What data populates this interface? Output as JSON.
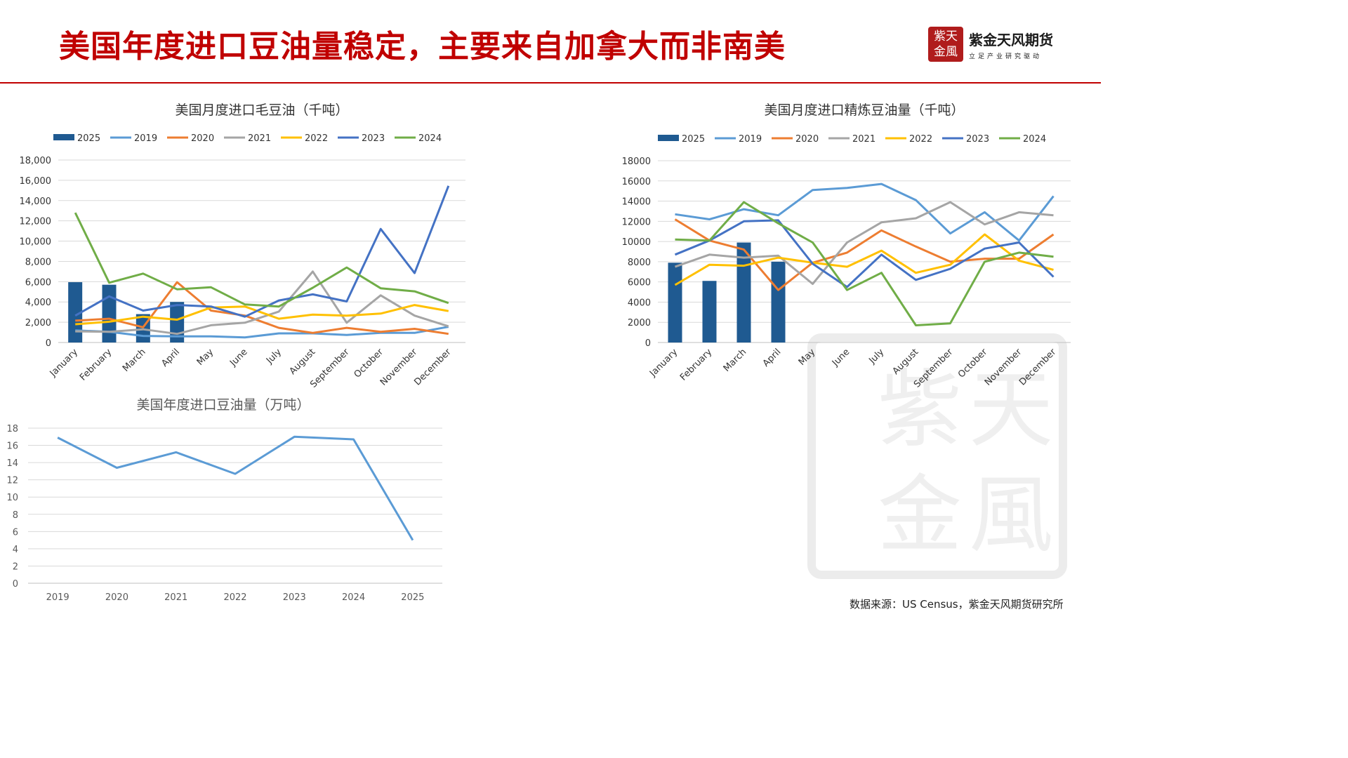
{
  "title": "美国年度进口豆油量稳定，主要来自加拿大而非南美",
  "logo": {
    "seal_text": "紫天金風",
    "name": "紫金天风期货",
    "slogan": "立足产业研究驱动"
  },
  "source": "数据来源：US Census，紫金天风期货研究所",
  "colors": {
    "title_red": "#c00000",
    "2025": "#1f5a91",
    "2019": "#5b9bd5",
    "2020": "#ed7d31",
    "2021": "#a5a5a5",
    "2022": "#ffc000",
    "2023": "#4472c4",
    "2024": "#70ad47"
  },
  "chart_data": [
    {
      "id": "crude",
      "type": "bar+line",
      "title": "美国月度进口毛豆油（千吨）",
      "categories": [
        "January",
        "February",
        "March",
        "April",
        "May",
        "June",
        "July",
        "August",
        "September",
        "October",
        "November",
        "December"
      ],
      "ylim": [
        0,
        18000
      ],
      "yticks": [
        "0",
        "2,000",
        "4,000",
        "6,000",
        "8,000",
        "10,000",
        "12,000",
        "14,000",
        "16,000",
        "18,000"
      ],
      "grid": true,
      "legend": "top",
      "bar_series": {
        "name": "2025",
        "values": [
          5950,
          5700,
          2800,
          4000
        ]
      },
      "series": [
        {
          "name": "2019",
          "values": [
            1200,
            1050,
            650,
            600,
            600,
            500,
            900,
            900,
            750,
            950,
            950,
            1550
          ]
        },
        {
          "name": "2020",
          "values": [
            2150,
            2350,
            1500,
            5950,
            3150,
            2650,
            1450,
            950,
            1450,
            1050,
            1350,
            850
          ]
        },
        {
          "name": "2021",
          "values": [
            1100,
            1050,
            1300,
            850,
            1700,
            1950,
            3050,
            7000,
            1950,
            4650,
            2650,
            1600
          ]
        },
        {
          "name": "2022",
          "values": [
            1800,
            2050,
            2550,
            2250,
            3450,
            3550,
            2350,
            2750,
            2650,
            2850,
            3700,
            3100
          ]
        },
        {
          "name": "2023",
          "values": [
            2650,
            4550,
            3150,
            3700,
            3550,
            2550,
            4150,
            4750,
            4050,
            11200,
            6850,
            15450
          ]
        },
        {
          "name": "2024",
          "values": [
            12800,
            5900,
            6800,
            5250,
            5450,
            3750,
            3550,
            5400,
            7400,
            5350,
            5050,
            3900
          ]
        }
      ]
    },
    {
      "id": "refined",
      "type": "bar+line",
      "title": "美国月度进口精炼豆油量（千吨）",
      "categories": [
        "January",
        "February",
        "March",
        "April",
        "May",
        "June",
        "July",
        "August",
        "September",
        "October",
        "November",
        "December"
      ],
      "ylim": [
        0,
        18000
      ],
      "yticks": [
        "0",
        "2000",
        "4000",
        "6000",
        "8000",
        "10000",
        "12000",
        "14000",
        "16000",
        "18000"
      ],
      "grid": true,
      "legend": "top",
      "bar_series": {
        "name": "2025",
        "values": [
          7900,
          6100,
          9900,
          8000
        ]
      },
      "series": [
        {
          "name": "2019",
          "values": [
            12700,
            12200,
            13200,
            12600,
            15100,
            15300,
            15700,
            14100,
            10800,
            12900,
            10100,
            14500
          ]
        },
        {
          "name": "2020",
          "values": [
            12200,
            10100,
            9200,
            5200,
            7900,
            8900,
            11100,
            9500,
            8000,
            8300,
            8300,
            10700
          ]
        },
        {
          "name": "2021",
          "values": [
            7500,
            8700,
            8400,
            8600,
            5800,
            9900,
            11900,
            12300,
            13900,
            11700,
            12900,
            12600
          ]
        },
        {
          "name": "2022",
          "values": [
            5700,
            7700,
            7600,
            8400,
            7900,
            7500,
            9100,
            6900,
            7700,
            10700,
            8100,
            7200
          ]
        },
        {
          "name": "2023",
          "values": [
            8700,
            10100,
            12000,
            12100,
            7800,
            5500,
            8700,
            6200,
            7300,
            9300,
            9900,
            6500
          ]
        },
        {
          "name": "2024",
          "values": [
            10200,
            10100,
            13900,
            11800,
            9900,
            5200,
            6900,
            1700,
            1900,
            8000,
            8900,
            8500
          ]
        }
      ]
    },
    {
      "id": "annual",
      "type": "line",
      "title": "美国年度进口豆油量（万吨）",
      "categories": [
        "2019",
        "2020",
        "2021",
        "2022",
        "2023",
        "2024",
        "2025"
      ],
      "ylim": [
        0,
        18
      ],
      "yticks": [
        "0",
        "2",
        "4",
        "6",
        "8",
        "10",
        "12",
        "14",
        "16",
        "18"
      ],
      "grid": true,
      "series": [
        {
          "name": "",
          "values": [
            16.9,
            13.4,
            15.2,
            12.7,
            17.0,
            16.7,
            5.0
          ]
        }
      ]
    }
  ]
}
